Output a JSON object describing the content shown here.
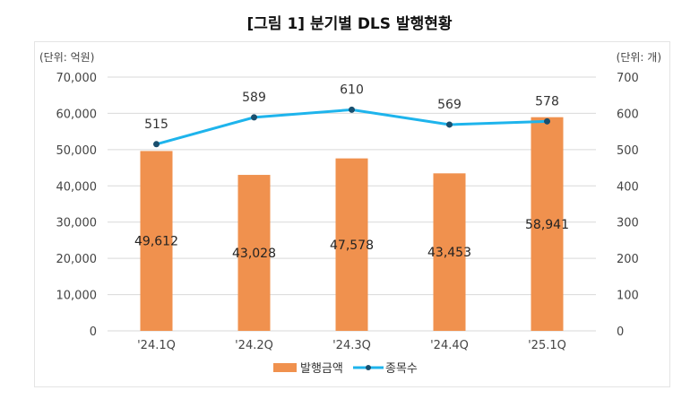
{
  "title": "[그림 1] 분기별 DLS 발행현황",
  "chart_data": {
    "type": "bar+line",
    "title": "[그림 1] 분기별 DLS 발행현황",
    "left_unit": "(단위: 억원)",
    "right_unit": "(단위: 개)",
    "categories": [
      "'24.1Q",
      "'24.2Q",
      "'24.3Q",
      "'24.4Q",
      "'25.1Q"
    ],
    "left_ylim": [
      0,
      70000
    ],
    "left_ticks": [
      "0",
      "10,000",
      "20,000",
      "30,000",
      "40,000",
      "50,000",
      "60,000",
      "70,000"
    ],
    "right_ylim": [
      0,
      700
    ],
    "right_ticks": [
      "0",
      "100",
      "200",
      "300",
      "400",
      "500",
      "600",
      "700"
    ],
    "grid": true,
    "legend": "bottom",
    "series": [
      {
        "name": "발행금액",
        "type": "bar",
        "axis": "left",
        "color": "#F0914E",
        "values": [
          49612,
          43028,
          47578,
          43453,
          58941
        ],
        "labels": [
          "49,612",
          "43,028",
          "47,578",
          "43,453",
          "58,941"
        ]
      },
      {
        "name": "종목수",
        "type": "line",
        "axis": "right",
        "color": "#1EB4EC",
        "marker_color": "#1A4F6E",
        "values": [
          515,
          589,
          610,
          569,
          578
        ],
        "labels": [
          "515",
          "589",
          "610",
          "569",
          "578"
        ]
      }
    ]
  }
}
